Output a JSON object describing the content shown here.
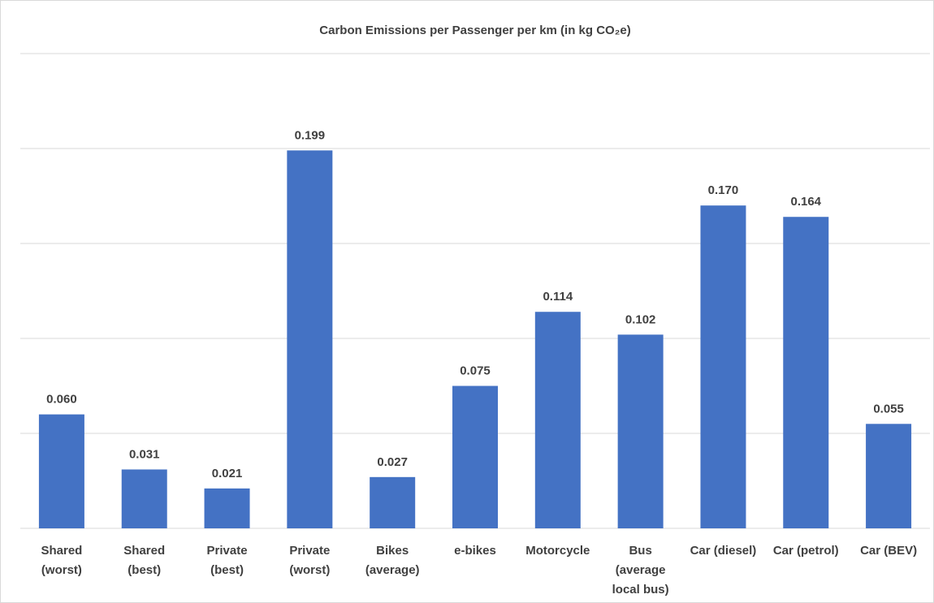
{
  "chart_data": {
    "type": "bar",
    "title": "Carbon Emissions per Passenger per km (in kg CO₂e)",
    "categories": [
      "Shared (worst)",
      "Shared (best)",
      "Private (best)",
      "Private (worst)",
      "Bikes (average)",
      "e-bikes",
      "Motorcycle",
      "Bus (average local bus)",
      "Car (diesel)",
      "Car (petrol)",
      "Car (BEV)"
    ],
    "values": [
      0.06,
      0.031,
      0.021,
      0.199,
      0.027,
      0.075,
      0.114,
      0.102,
      0.17,
      0.164,
      0.055
    ],
    "value_labels": [
      "0.060",
      "0.031",
      "0.021",
      "0.199",
      "0.027",
      "0.075",
      "0.114",
      "0.102",
      "0.170",
      "0.164",
      "0.055"
    ],
    "color": "#4472c4",
    "ylim": [
      0,
      0.25
    ],
    "yticks": [
      0,
      0.05,
      0.1,
      0.15,
      0.2,
      0.25
    ],
    "grid": true
  }
}
